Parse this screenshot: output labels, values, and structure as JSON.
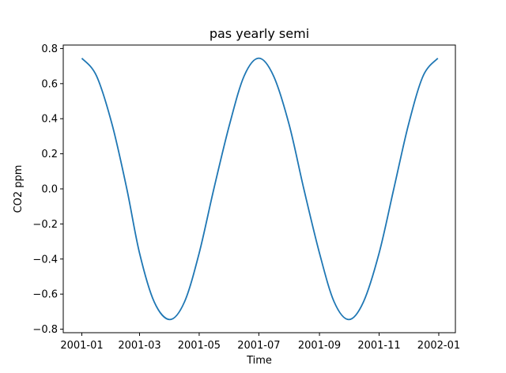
{
  "chart_data": {
    "type": "line",
    "title": "pas yearly semi",
    "xlabel": "Time",
    "ylabel": "CO2 ppm",
    "x_ticks": [
      "2001-01",
      "2001-03",
      "2001-05",
      "2001-07",
      "2001-09",
      "2001-11",
      "2002-01"
    ],
    "y_ticks": [
      "−0.8",
      "−0.6",
      "−0.4",
      "−0.2",
      "0.0",
      "0.2",
      "0.4",
      "0.6",
      "0.8"
    ],
    "y_tick_values": [
      -0.8,
      -0.6,
      -0.4,
      -0.2,
      0.0,
      0.2,
      0.4,
      0.6,
      0.8
    ],
    "xlim": [
      "2000-12-13",
      "2002-01-18"
    ],
    "ylim": [
      -0.82,
      0.82
    ],
    "grid": false,
    "series": [
      {
        "color": "#1f77b4",
        "x": [
          "2001-01-01",
          "2001-01-16",
          "2001-02-01",
          "2001-02-16",
          "2001-03-01",
          "2001-03-16",
          "2001-04-01",
          "2001-04-16",
          "2001-05-01",
          "2001-05-16",
          "2001-06-01",
          "2001-06-16",
          "2001-07-01",
          "2001-07-16",
          "2001-08-01",
          "2001-08-16",
          "2001-09-01",
          "2001-09-16",
          "2001-10-01",
          "2001-10-16",
          "2001-11-01",
          "2001-11-16",
          "2001-12-01",
          "2001-12-16",
          "2001-12-31"
        ],
        "y": [
          0.745,
          0.644,
          0.366,
          0.0,
          -0.366,
          -0.644,
          -0.745,
          -0.644,
          -0.366,
          0.0,
          0.366,
          0.644,
          0.745,
          0.644,
          0.366,
          0.0,
          -0.366,
          -0.644,
          -0.745,
          -0.644,
          -0.366,
          0.0,
          0.366,
          0.644,
          0.745
        ]
      }
    ]
  }
}
